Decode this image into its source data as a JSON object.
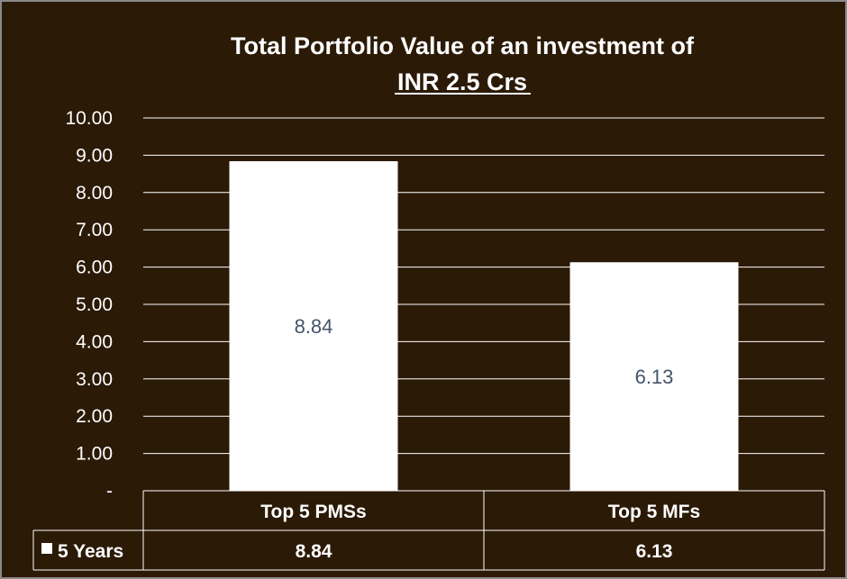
{
  "chart_data": {
    "type": "bar",
    "title_line1": "Total Portfolio Value of an investment of",
    "title_line2": "INR 2.5 Crs",
    "categories": [
      "Top 5 PMSs",
      "Top 5 MFs"
    ],
    "series": [
      {
        "name": "5 Years",
        "values": [
          8.84,
          6.13
        ]
      }
    ],
    "data_labels": [
      "8.84",
      "6.13"
    ],
    "yticks": [
      "-",
      "1.00",
      "2.00",
      "3.00",
      "4.00",
      "5.00",
      "6.00",
      "7.00",
      "8.00",
      "9.00",
      "10.00"
    ],
    "ylim": [
      0,
      10
    ],
    "grid": true,
    "legend": "data-table",
    "data_table": {
      "row_label": "5 Years",
      "values": [
        "8.84",
        "6.13"
      ]
    },
    "colors": {
      "background": "#2b1a06",
      "bar": "#ffffff",
      "grid": "#ffffff",
      "data_label": "#44546a"
    }
  }
}
